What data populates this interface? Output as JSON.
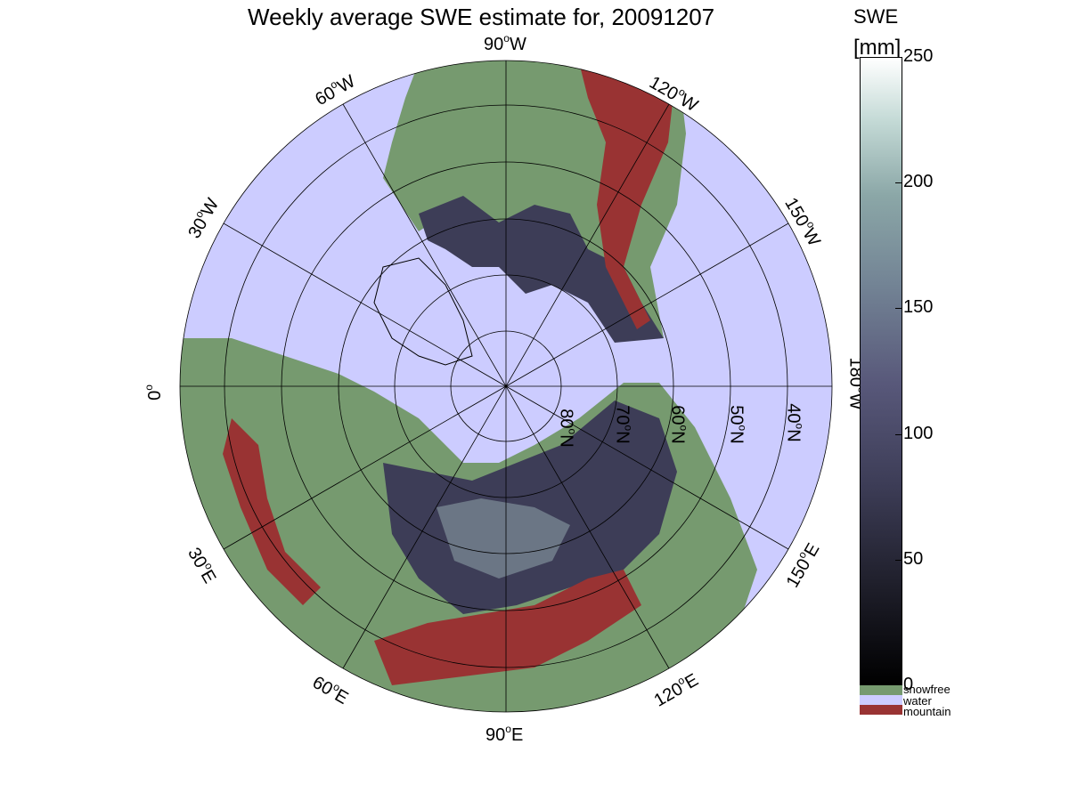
{
  "title": "Weekly average SWE estimate for, 20091207",
  "longitude_labels": {
    "lon_90W": "90",
    "lon_120W": "120",
    "lon_60W": "60",
    "lon_150W": "150",
    "lon_30W": "30",
    "lon_0": "0",
    "lon_180W": "180",
    "lon_30E": "30",
    "lon_150E": "150",
    "lon_60E": "60",
    "lon_120E": "120",
    "lon_90E": "90"
  },
  "longitude_suffixes": {
    "W": "W",
    "E": "E",
    "deg": "o"
  },
  "latitude_labels": [
    "80",
    "70",
    "60",
    "50",
    "40"
  ],
  "latitude_suffix": "N",
  "colorbar": {
    "title_line1": "SWE",
    "title_line2": "[mm]",
    "ticks": [
      "250",
      "200",
      "150",
      "100",
      "50",
      "0"
    ],
    "tick_values": [
      250,
      200,
      150,
      100,
      50,
      0
    ],
    "range": [
      0,
      250
    ],
    "colors": [
      "#000000",
      "#3d3d57",
      "#738495",
      "#c4dad6",
      "#ffffff"
    ]
  },
  "categories": [
    {
      "label": "snowfree",
      "color": "#769a6f"
    },
    {
      "label": "water",
      "color": "#ccccff"
    },
    {
      "label": "mountain",
      "color": "#993333"
    }
  ],
  "map_colors": {
    "water": "#ccccff",
    "snowfree": "#769a6f",
    "mountain": "#993333",
    "snow_dark": "#1f1f2b",
    "snow_mid": "#4a4a66",
    "snow_high": "#7a8a99"
  }
}
